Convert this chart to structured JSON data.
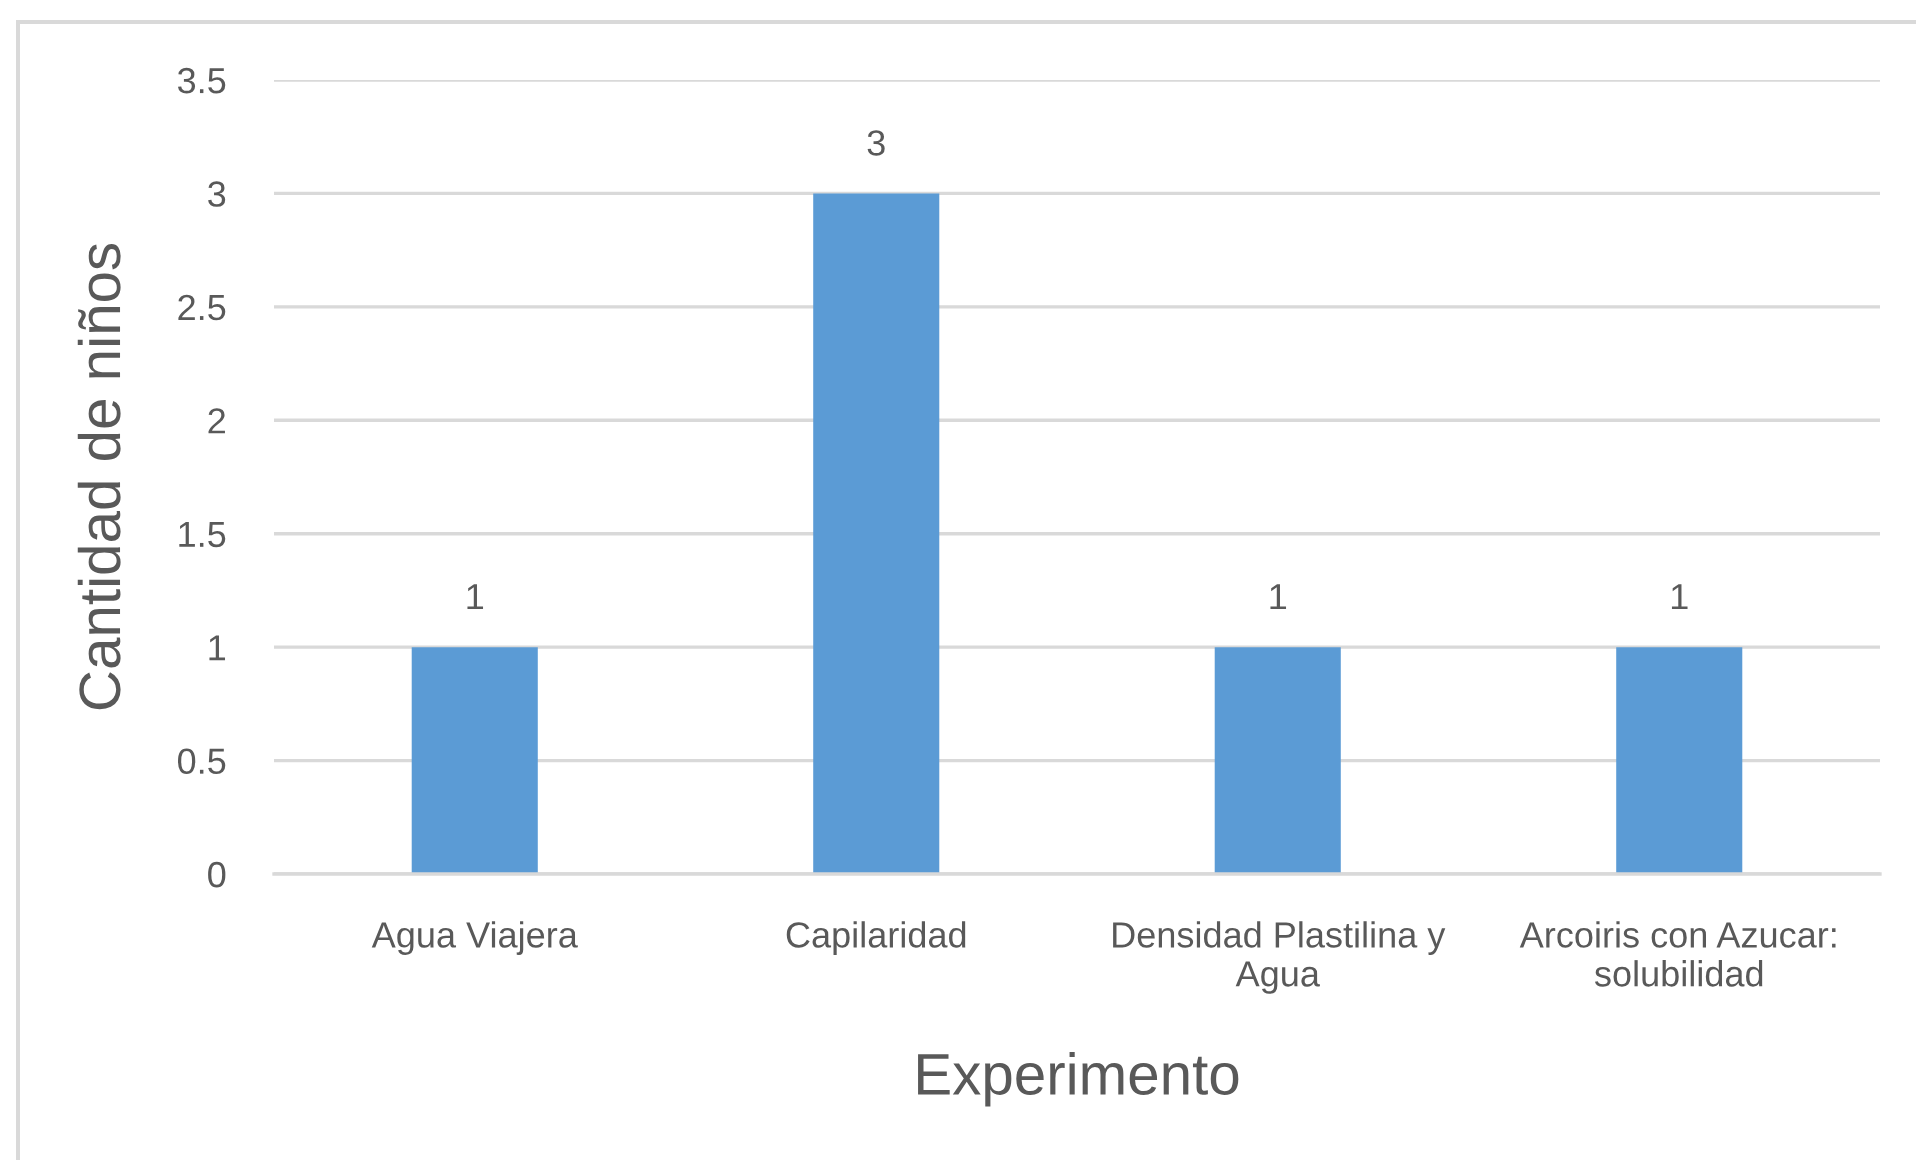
{
  "chart_data": {
    "type": "bar",
    "xlabel": "Experimento",
    "ylabel": "Cantidad de niños",
    "categories": [
      "Agua Viajera",
      "Capilaridad",
      "Densidad Plastilina y\nAgua",
      "Arcoiris con Azucar:\nsolubilidad"
    ],
    "values": [
      1,
      3,
      1,
      1
    ],
    "color": "#5b9bd5",
    "ylim": [
      0,
      3.5
    ],
    "yticks": [
      0,
      0.5,
      1,
      1.5,
      2,
      2.5,
      3,
      3.5
    ],
    "grid": "y",
    "data_labels": true
  }
}
